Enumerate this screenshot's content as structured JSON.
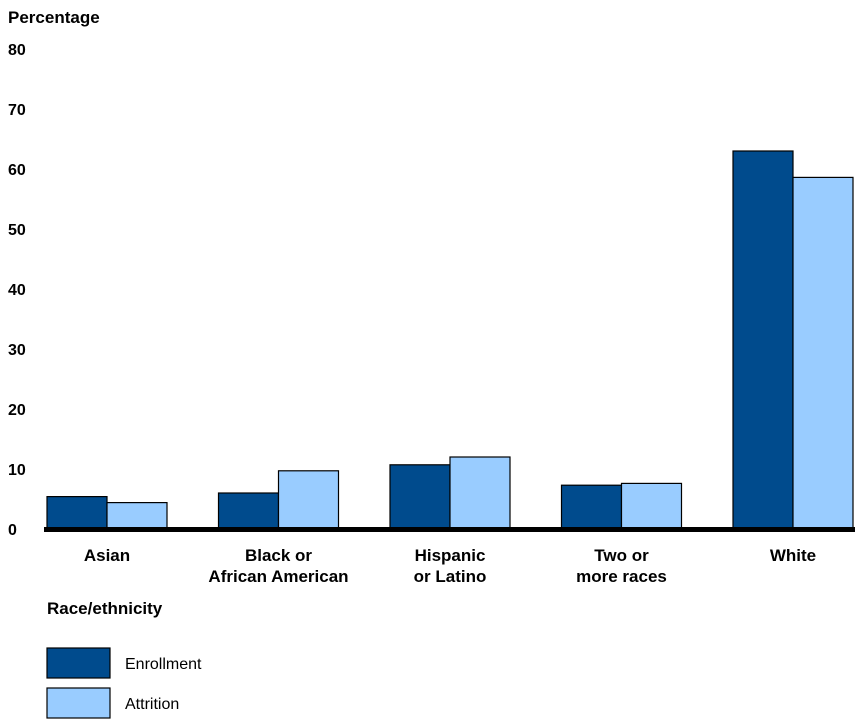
{
  "chart_data": {
    "type": "bar",
    "ylabel": "Percentage",
    "xlabel": "Race/ethnicity",
    "ylim": [
      0,
      80
    ],
    "yticks": [
      0,
      10,
      20,
      30,
      40,
      50,
      60,
      70,
      80
    ],
    "categories": [
      [
        "Asian"
      ],
      [
        "Black or",
        "African American"
      ],
      [
        "Hispanic",
        "or Latino"
      ],
      [
        "Two or",
        "more races"
      ],
      [
        "White"
      ]
    ],
    "series": [
      {
        "name": "Enrollment",
        "color": "#004b8d",
        "values": [
          5.4,
          6.0,
          10.7,
          7.3,
          63.0
        ]
      },
      {
        "name": "Attrition",
        "color": "#99ccff",
        "values": [
          4.4,
          9.7,
          12.0,
          7.6,
          58.6
        ]
      }
    ],
    "grid": false,
    "legend": "bottom-left"
  }
}
